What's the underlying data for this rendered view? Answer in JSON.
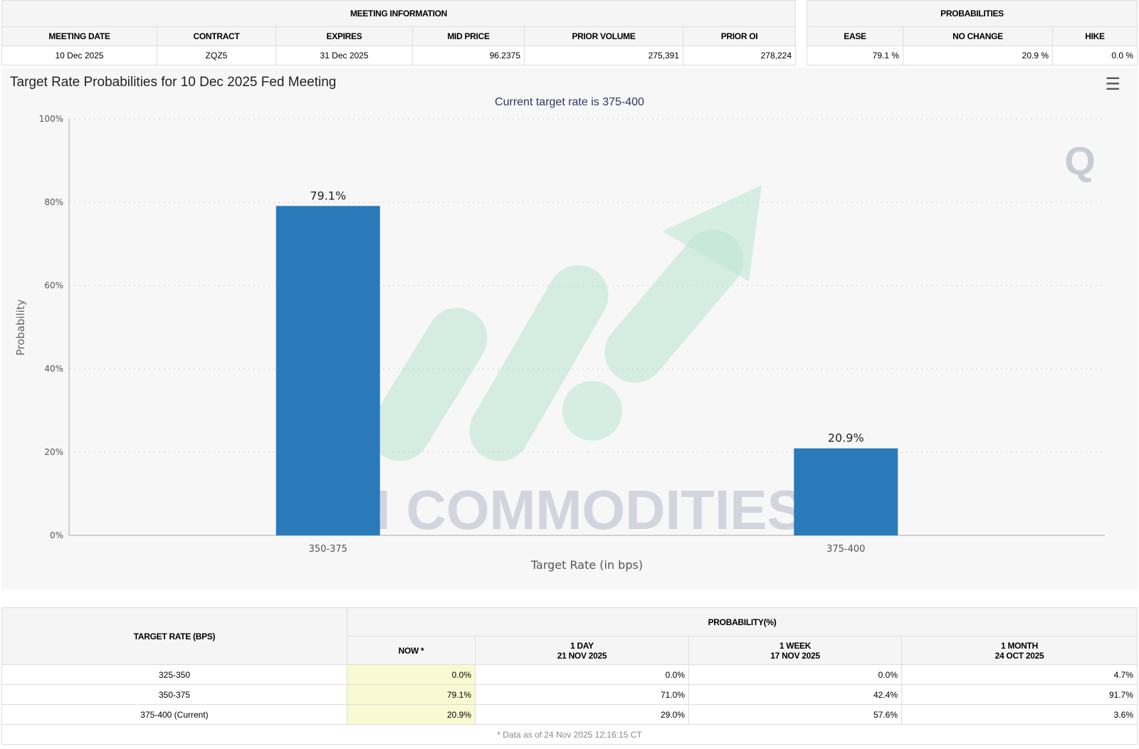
{
  "meeting_info": {
    "header": "MEETING INFORMATION",
    "columns": [
      "MEETING DATE",
      "CONTRACT",
      "EXPIRES",
      "MID PRICE",
      "PRIOR VOLUME",
      "PRIOR OI"
    ],
    "row": [
      "10 Dec 2025",
      "ZQZ5",
      "31 Dec 2025",
      "96.2375",
      "275,391",
      "278,224"
    ]
  },
  "probabilities": {
    "header": "PROBABILITIES",
    "columns": [
      "EASE",
      "NO CHANGE",
      "HIKE"
    ],
    "row": [
      "79.1 %",
      "20.9 %",
      "0.0 %"
    ]
  },
  "chart_data": {
    "type": "bar",
    "title": "Target Rate Probabilities for 10 Dec 2025 Fed Meeting",
    "subtitle": "Current target rate is 375-400",
    "categories": [
      "350-375",
      "375-400"
    ],
    "values": [
      79.1,
      20.9
    ],
    "data_labels": [
      "79.1%",
      "20.9%"
    ],
    "xlabel": "Target Rate (in bps)",
    "ylabel": "Probability",
    "ylim": [
      0,
      100
    ],
    "yticks": [
      "0%",
      "20%",
      "40%",
      "60%",
      "80%",
      "100%"
    ],
    "grid": true,
    "bar_color": "#2a7ab9"
  },
  "watermark": "VN COMMODITIES",
  "menu_icon": "hamburger-icon",
  "bottom_table": {
    "rate_header": "TARGET RATE (BPS)",
    "prob_header": "PROBABILITY(%)",
    "columns": [
      {
        "l1": "NOW *",
        "l2": ""
      },
      {
        "l1": "1 DAY",
        "l2": "21 NOV 2025"
      },
      {
        "l1": "1 WEEK",
        "l2": "17 NOV 2025"
      },
      {
        "l1": "1 MONTH",
        "l2": "24 OCT 2025"
      }
    ],
    "rows": [
      {
        "rate": "325-350",
        "v": [
          "0.0%",
          "0.0%",
          "0.0%",
          "4.7%"
        ]
      },
      {
        "rate": "350-375",
        "v": [
          "79.1%",
          "71.0%",
          "42.4%",
          "91.7%"
        ]
      },
      {
        "rate": "375-400 (Current)",
        "v": [
          "20.9%",
          "29.0%",
          "57.6%",
          "3.6%"
        ]
      }
    ],
    "footnote": "* Data as of 24 Nov 2025 12:16:15 CT"
  }
}
